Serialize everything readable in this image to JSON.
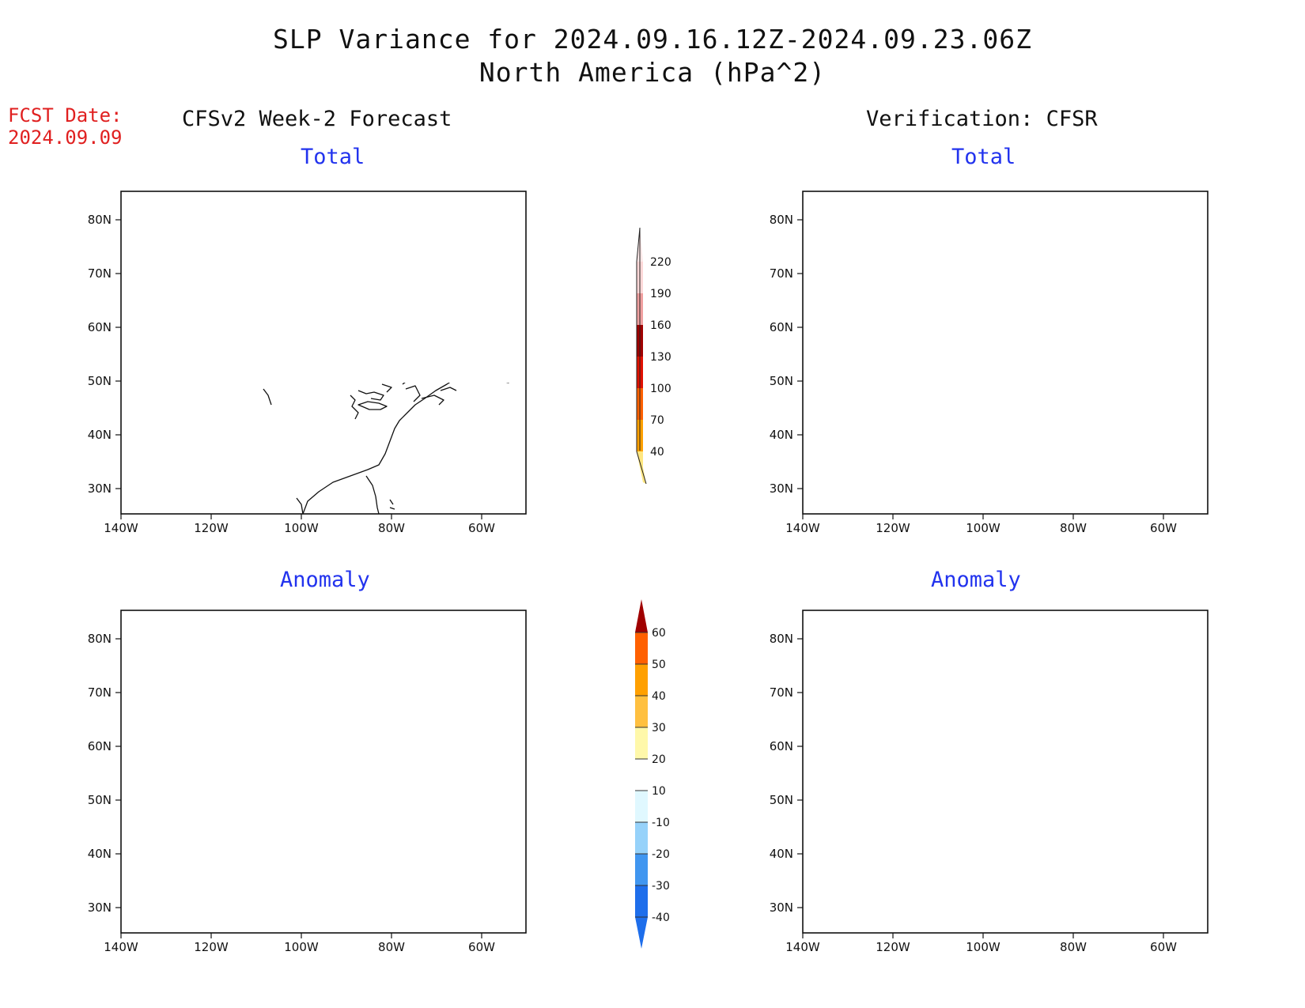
{
  "header": {
    "title_line1": "SLP Variance for 2024.09.16.12Z-2024.09.23.06Z",
    "title_line2": "North America (hPa^2)"
  },
  "fcst": {
    "label": "FCST Date:",
    "date": "2024.09.09"
  },
  "columns": {
    "left": "CFSv2 Week-2 Forecast",
    "right": "Verification: CFSR"
  },
  "panels": {
    "fc_total": "Total",
    "fc_anom": "Anomaly",
    "ver_total": "Total",
    "ver_anom": "Anomaly"
  },
  "axes": {
    "lat_ticks": [
      "80N",
      "70N",
      "60N",
      "50N",
      "40N",
      "30N"
    ],
    "lon_ticks": [
      "140W",
      "120W",
      "100W",
      "80W",
      "60W"
    ]
  },
  "colorbars": {
    "total": {
      "levels": [
        "40",
        "70",
        "100",
        "130",
        "160",
        "190",
        "220"
      ],
      "colors": [
        "#ffe680",
        "#ffa000",
        "#ff6000",
        "#e01000",
        "#a00000",
        "#f0a0a0",
        "#fdd8d8"
      ]
    },
    "anomaly": {
      "levels": [
        "-40",
        "-30",
        "-20",
        "-10",
        "10",
        "20",
        "30",
        "40",
        "50",
        "60"
      ],
      "colors": [
        "#1e6eeb",
        "#4096f0",
        "#96d2fa",
        "#e0f8ff",
        "#ffffff",
        "#fff8aa",
        "#ffc040",
        "#ffa000",
        "#ff6000",
        "#e01000",
        "#a00000"
      ]
    }
  }
}
